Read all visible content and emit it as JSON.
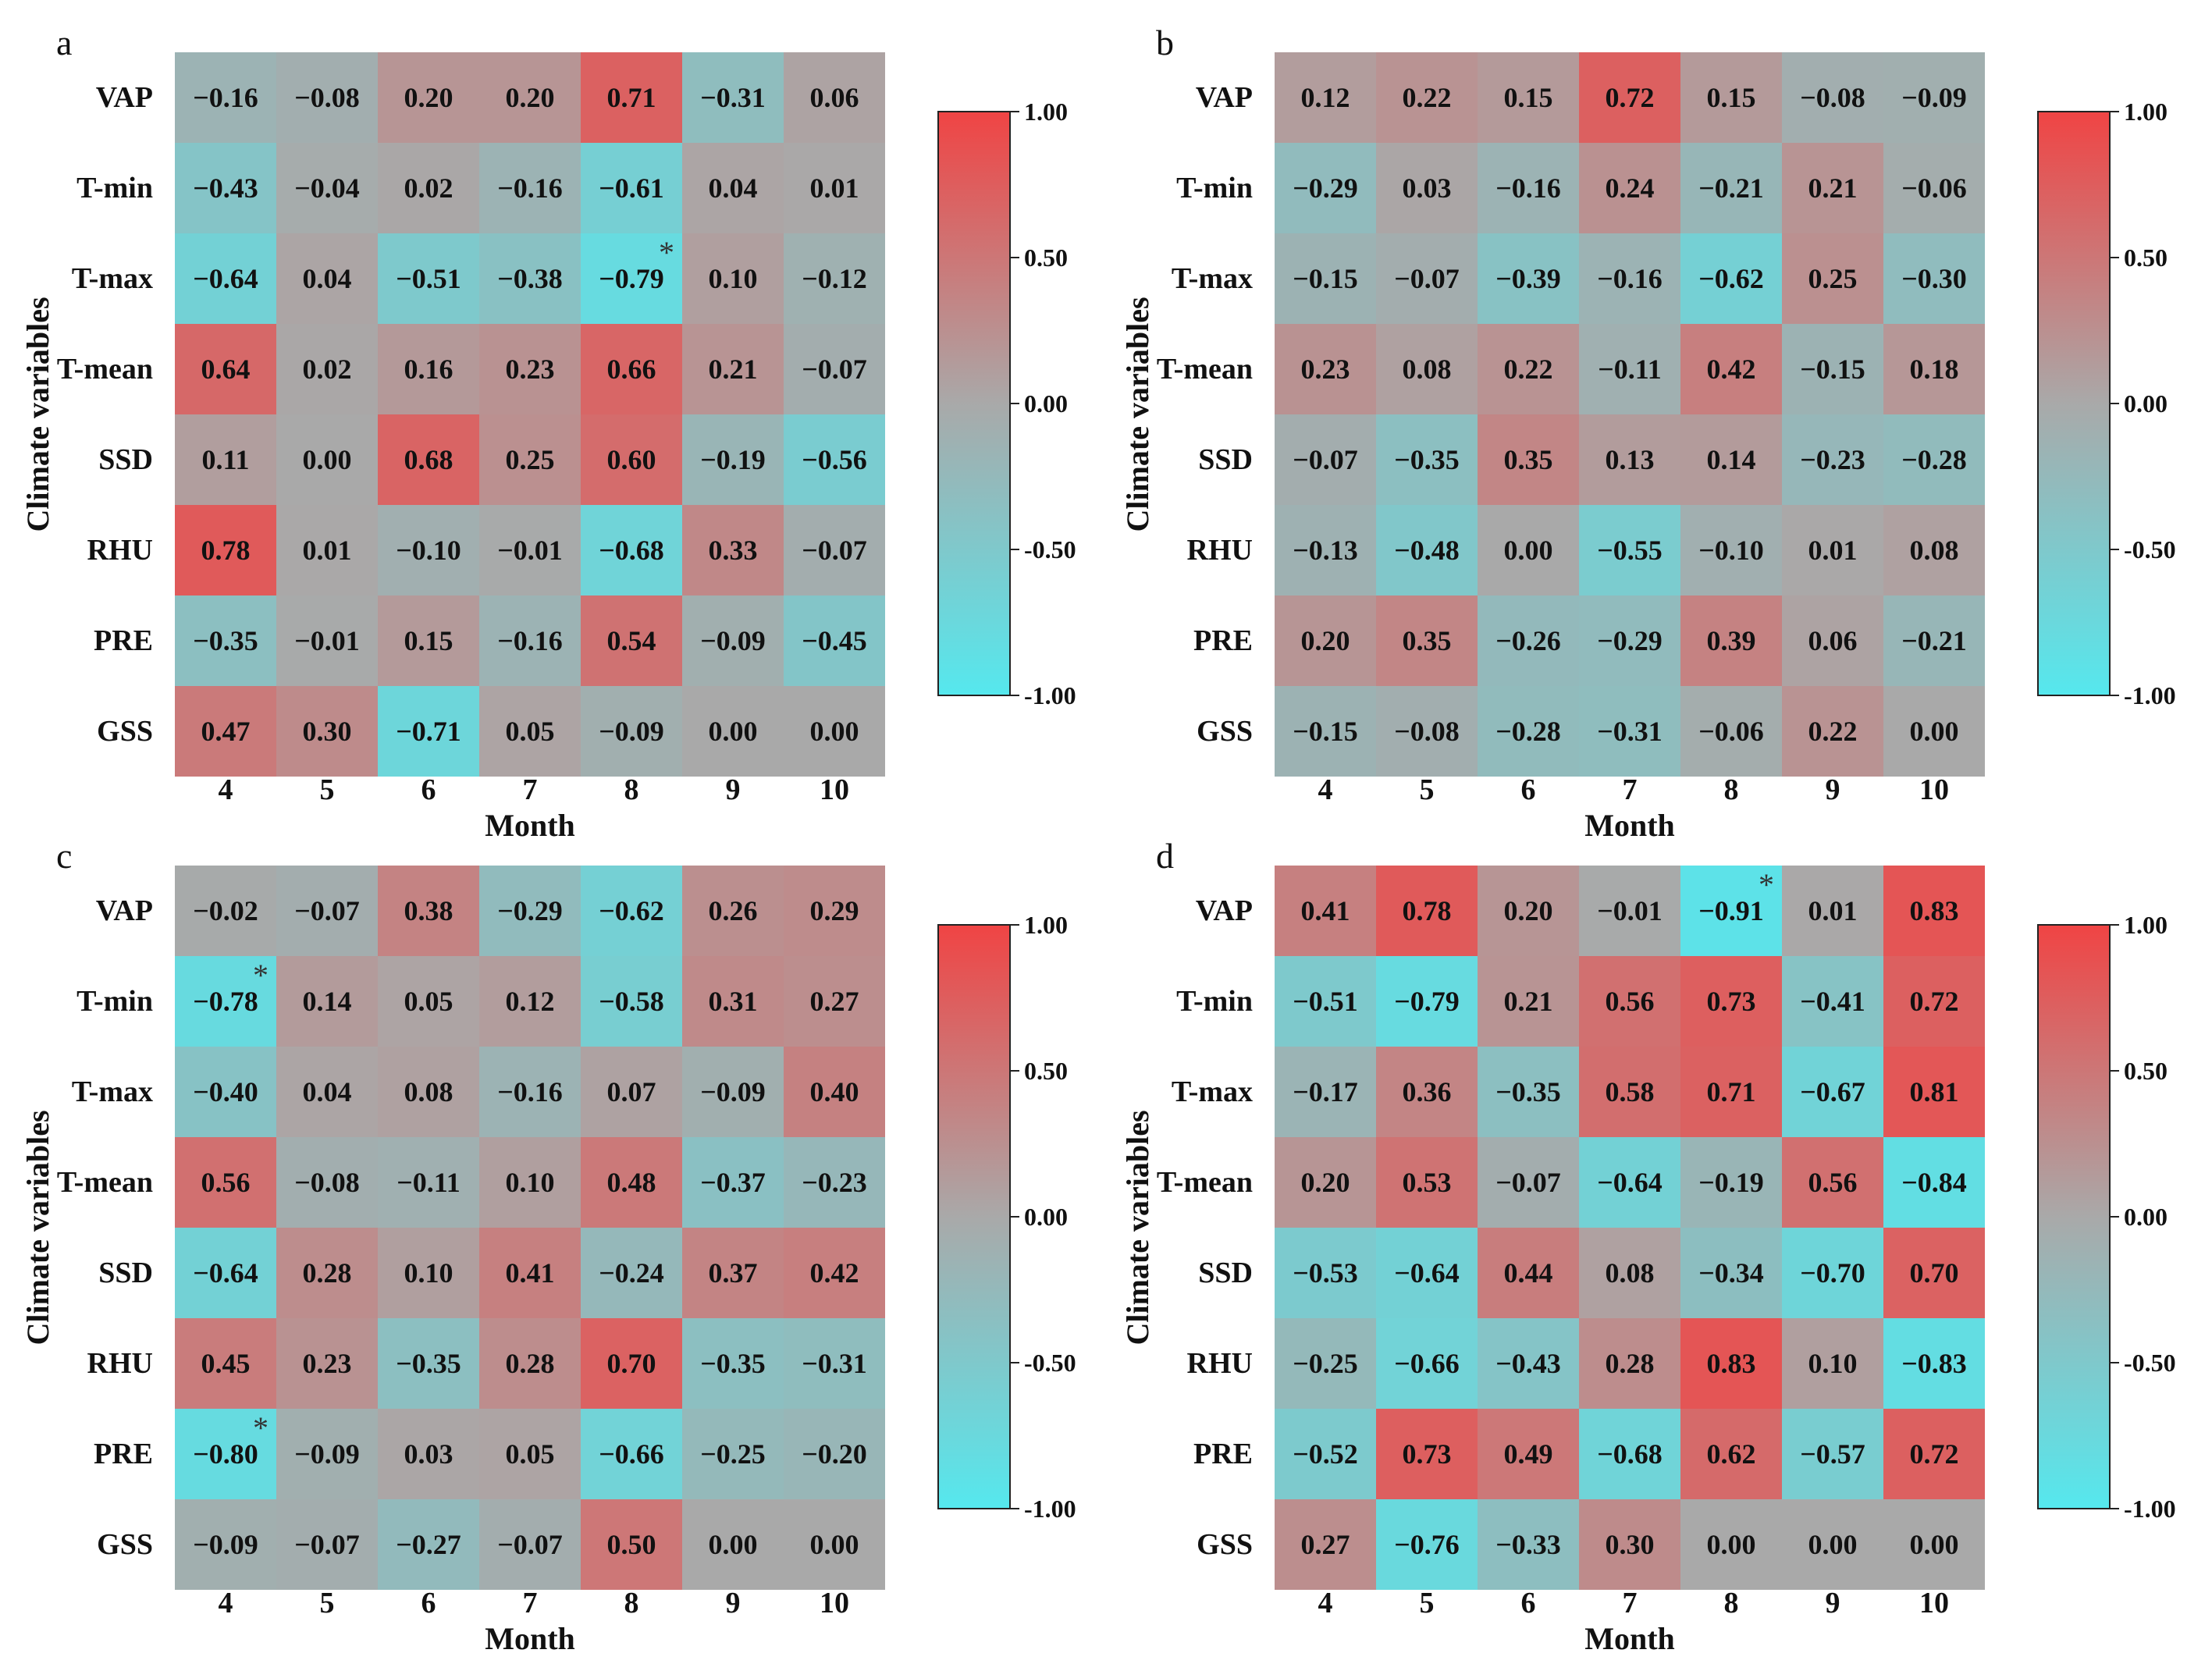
{
  "chart_data": {
    "type": "heatmap",
    "row_labels": [
      "VAP",
      "T-min",
      "T-max",
      "T-mean",
      "SSD",
      "RHU",
      "PRE",
      "GSS"
    ],
    "column_labels": [
      "4",
      "5",
      "6",
      "7",
      "8",
      "9",
      "10"
    ],
    "xlabel": "Month",
    "ylabel": "Climate variables",
    "color_scale": {
      "min": -1.0,
      "mid": 0.0,
      "max": 1.0,
      "low_color": "#55e8ee",
      "mid_color": "#a9a9a9",
      "high_color": "#f04444"
    },
    "colorbar_ticks": [
      "1.00",
      "0.50",
      "0.00",
      "-0.50",
      "-1.00"
    ],
    "significance_marker": "*",
    "panels": [
      {
        "label": "a",
        "values": [
          [
            -0.16,
            -0.08,
            0.2,
            0.2,
            0.71,
            -0.31,
            0.06
          ],
          [
            -0.43,
            -0.04,
            0.02,
            -0.16,
            -0.61,
            0.04,
            0.01
          ],
          [
            -0.64,
            0.04,
            -0.51,
            -0.38,
            -0.79,
            0.1,
            -0.12
          ],
          [
            0.64,
            0.02,
            0.16,
            0.23,
            0.66,
            0.21,
            -0.07
          ],
          [
            0.11,
            0.0,
            0.68,
            0.25,
            0.6,
            -0.19,
            -0.56
          ],
          [
            0.78,
            0.01,
            -0.1,
            -0.01,
            -0.68,
            0.33,
            -0.07
          ],
          [
            -0.35,
            -0.01,
            0.15,
            -0.16,
            0.54,
            -0.09,
            -0.45
          ],
          [
            0.47,
            0.3,
            -0.71,
            0.05,
            -0.09,
            0.0,
            0.0
          ]
        ],
        "labels": [
          [
            "−0.16",
            "−0.08",
            "0.20",
            "0.20",
            "0.71",
            "−0.31",
            "0.06"
          ],
          [
            "−0.43",
            "−0.04",
            "0.02",
            "−0.16",
            "−0.61",
            "0.04",
            "0.01"
          ],
          [
            "−0.64",
            "0.04",
            "−0.51",
            "−0.38",
            "−0.79",
            "0.10",
            "−0.12"
          ],
          [
            "0.64",
            "0.02",
            "0.16",
            "0.23",
            "0.66",
            "0.21",
            "−0.07"
          ],
          [
            "0.11",
            "0.00",
            "0.68",
            "0.25",
            "0.60",
            "−0.19",
            "−0.56"
          ],
          [
            "0.78",
            "0.01",
            "−0.10",
            "−0.01",
            "−0.68",
            "0.33",
            "−0.07"
          ],
          [
            "−0.35",
            "−0.01",
            "0.15",
            "−0.16",
            "0.54",
            "−0.09",
            "−0.45"
          ],
          [
            "0.47",
            "0.30",
            "−0.71",
            "0.05",
            "−0.09",
            "0.00",
            "0.00"
          ]
        ],
        "significant": [
          [
            2,
            4
          ]
        ]
      },
      {
        "label": "b",
        "values": [
          [
            0.12,
            0.22,
            0.15,
            0.72,
            0.15,
            -0.08,
            -0.09
          ],
          [
            -0.29,
            0.03,
            -0.16,
            0.24,
            -0.21,
            0.21,
            -0.06
          ],
          [
            -0.15,
            -0.07,
            -0.39,
            -0.16,
            -0.62,
            0.25,
            -0.3
          ],
          [
            0.23,
            0.08,
            0.22,
            -0.11,
            0.42,
            -0.15,
            0.18
          ],
          [
            -0.07,
            -0.35,
            0.35,
            0.13,
            0.14,
            -0.23,
            -0.28
          ],
          [
            -0.13,
            -0.48,
            0.0,
            -0.55,
            -0.1,
            0.01,
            0.08
          ],
          [
            0.2,
            0.35,
            -0.26,
            -0.29,
            0.39,
            0.06,
            -0.21
          ],
          [
            -0.15,
            -0.08,
            -0.28,
            -0.31,
            -0.06,
            0.22,
            0.0
          ]
        ],
        "labels": [
          [
            "0.12",
            "0.22",
            "0.15",
            "0.72",
            "0.15",
            "−0.08",
            "−0.09"
          ],
          [
            "−0.29",
            "0.03",
            "−0.16",
            "0.24",
            "−0.21",
            "0.21",
            "−0.06"
          ],
          [
            "−0.15",
            "−0.07",
            "−0.39",
            "−0.16",
            "−0.62",
            "0.25",
            "−0.30"
          ],
          [
            "0.23",
            "0.08",
            "0.22",
            "−0.11",
            "0.42",
            "−0.15",
            "0.18"
          ],
          [
            "−0.07",
            "−0.35",
            "0.35",
            "0.13",
            "0.14",
            "−0.23",
            "−0.28"
          ],
          [
            "−0.13",
            "−0.48",
            "0.00",
            "−0.55",
            "−0.10",
            "0.01",
            "0.08"
          ],
          [
            "0.20",
            "0.35",
            "−0.26",
            "−0.29",
            "0.39",
            "0.06",
            "−0.21"
          ],
          [
            "−0.15",
            "−0.08",
            "−0.28",
            "−0.31",
            "−0.06",
            "0.22",
            "0.00"
          ]
        ],
        "significant": []
      },
      {
        "label": "c",
        "values": [
          [
            -0.02,
            -0.07,
            0.38,
            -0.29,
            -0.62,
            0.26,
            0.29
          ],
          [
            -0.78,
            0.14,
            0.05,
            0.12,
            -0.58,
            0.31,
            0.27
          ],
          [
            -0.4,
            0.04,
            0.08,
            -0.16,
            0.07,
            -0.09,
            0.4
          ],
          [
            0.56,
            -0.08,
            -0.11,
            0.1,
            0.48,
            -0.37,
            -0.23
          ],
          [
            -0.64,
            0.28,
            0.1,
            0.41,
            -0.24,
            0.37,
            0.42
          ],
          [
            0.45,
            0.23,
            -0.35,
            0.28,
            0.7,
            -0.35,
            -0.31
          ],
          [
            -0.8,
            -0.09,
            0.03,
            0.05,
            -0.66,
            -0.25,
            -0.2
          ],
          [
            -0.09,
            -0.07,
            -0.27,
            -0.07,
            0.5,
            0.0,
            0.0
          ]
        ],
        "labels": [
          [
            "−0.02",
            "−0.07",
            "0.38",
            "−0.29",
            "−0.62",
            "0.26",
            "0.29"
          ],
          [
            "−0.78",
            "0.14",
            "0.05",
            "0.12",
            "−0.58",
            "0.31",
            "0.27"
          ],
          [
            "−0.40",
            "0.04",
            "0.08",
            "−0.16",
            "0.07",
            "−0.09",
            "0.40"
          ],
          [
            "0.56",
            "−0.08",
            "−0.11",
            "0.10",
            "0.48",
            "−0.37",
            "−0.23"
          ],
          [
            "−0.64",
            "0.28",
            "0.10",
            "0.41",
            "−0.24",
            "0.37",
            "0.42"
          ],
          [
            "0.45",
            "0.23",
            "−0.35",
            "0.28",
            "0.70",
            "−0.35",
            "−0.31"
          ],
          [
            "−0.80",
            "−0.09",
            "0.03",
            "0.05",
            "−0.66",
            "−0.25",
            "−0.20"
          ],
          [
            "−0.09",
            "−0.07",
            "−0.27",
            "−0.07",
            "0.50",
            "0.00",
            "0.00"
          ]
        ],
        "significant": [
          [
            1,
            0
          ],
          [
            6,
            0
          ]
        ]
      },
      {
        "label": "d",
        "values": [
          [
            0.41,
            0.78,
            0.2,
            -0.01,
            -0.91,
            0.01,
            0.83
          ],
          [
            -0.51,
            -0.79,
            0.21,
            0.56,
            0.73,
            -0.41,
            0.72
          ],
          [
            -0.17,
            0.36,
            -0.35,
            0.58,
            0.71,
            -0.67,
            0.81
          ],
          [
            0.2,
            0.53,
            -0.07,
            -0.64,
            -0.19,
            0.56,
            -0.84
          ],
          [
            -0.53,
            -0.64,
            0.44,
            0.08,
            -0.34,
            -0.7,
            0.7
          ],
          [
            -0.25,
            -0.66,
            -0.43,
            0.28,
            0.83,
            0.1,
            -0.83
          ],
          [
            -0.52,
            0.73,
            0.49,
            -0.68,
            0.62,
            -0.57,
            0.72
          ],
          [
            0.27,
            -0.76,
            -0.33,
            0.3,
            0.0,
            0.0,
            0.0
          ]
        ],
        "labels": [
          [
            "0.41",
            "0.78",
            "0.20",
            "−0.01",
            "−0.91",
            "0.01",
            "0.83"
          ],
          [
            "−0.51",
            "−0.79",
            "0.21",
            "0.56",
            "0.73",
            "−0.41",
            "0.72"
          ],
          [
            "−0.17",
            "0.36",
            "−0.35",
            "0.58",
            "0.71",
            "−0.67",
            "0.81"
          ],
          [
            "0.20",
            "0.53",
            "−0.07",
            "−0.64",
            "−0.19",
            "0.56",
            "−0.84"
          ],
          [
            "−0.53",
            "−0.64",
            "0.44",
            "0.08",
            "−0.34",
            "−0.70",
            "0.70"
          ],
          [
            "−0.25",
            "−0.66",
            "−0.43",
            "0.28",
            "0.83",
            "0.10",
            "−0.83"
          ],
          [
            "−0.52",
            "0.73",
            "0.49",
            "−0.68",
            "0.62",
            "−0.57",
            "0.72"
          ],
          [
            "0.27",
            "−0.76",
            "−0.33",
            "0.30",
            "0.00",
            "0.00",
            "0.00"
          ]
        ],
        "significant": [
          [
            0,
            4
          ]
        ]
      }
    ]
  }
}
